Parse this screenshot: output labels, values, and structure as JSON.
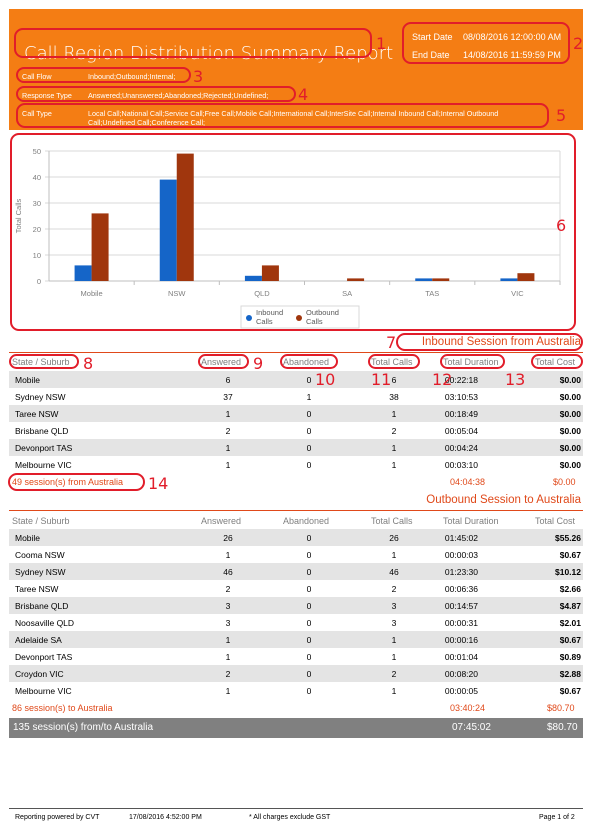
{
  "report": {
    "title": "Call Region Distribution Summary Report",
    "start_label": "Start Date",
    "start_value": "08/08/2016 12:00:00 AM",
    "end_label": "End Date",
    "end_value": "14/08/2016 11:59:59 PM",
    "filters": [
      {
        "label": "Call Flow",
        "value": "Inbound;Outbound;Internal;"
      },
      {
        "label": "Response Type",
        "value": "Answered;Unanswered;Abandoned;Rejected;Undefined;"
      },
      {
        "label": "Call Type",
        "value": "Local Call;National Call;Service Call;Free Call;Mobile Call;International Call;InterSite Call;Internal Inbound Call;Internal Outbound Call;Undefined Call;Conference Call;"
      }
    ],
    "colors": {
      "header": "#f47d14",
      "inbound": "#1565c8",
      "outbound": "#a0360d",
      "annotation": "#e11d2a",
      "section": "#e0491a"
    }
  },
  "annotations": [
    "1",
    "2",
    "3",
    "4",
    "5",
    "6",
    "7",
    "8",
    "9",
    "10",
    "11",
    "12",
    "13",
    "14"
  ],
  "chart_data": {
    "type": "bar",
    "ylabel": "Total Calls",
    "ylim": [
      0,
      50
    ],
    "yticks": [
      "0",
      "10",
      "20",
      "30",
      "40",
      "50"
    ],
    "categories": [
      "Mobile",
      "NSW",
      "QLD",
      "SA",
      "TAS",
      "VIC"
    ],
    "series": [
      {
        "name": "Inbound Calls",
        "values": [
          6,
          39,
          2,
          0,
          1,
          1
        ]
      },
      {
        "name": "Outbound Calls",
        "values": [
          26,
          49,
          6,
          1,
          1,
          3
        ]
      }
    ],
    "legend": [
      "Inbound Calls",
      "Outbound Calls"
    ],
    "legend_placement": "bottom",
    "grid": true
  },
  "columns": [
    "State / Suburb",
    "Answered",
    "Abandoned",
    "Total Calls",
    "Total Duration",
    "Total Cost"
  ],
  "inbound": {
    "title": "Inbound Session from Australia",
    "rows": [
      [
        "Mobile",
        "6",
        "0",
        "6",
        "00:22:18",
        "$0.00"
      ],
      [
        "Sydney NSW",
        "37",
        "1",
        "38",
        "03:10:53",
        "$0.00"
      ],
      [
        "Taree NSW",
        "1",
        "0",
        "1",
        "00:18:49",
        "$0.00"
      ],
      [
        "Brisbane QLD",
        "2",
        "0",
        "2",
        "00:05:04",
        "$0.00"
      ],
      [
        "Devonport TAS",
        "1",
        "0",
        "1",
        "00:04:24",
        "$0.00"
      ],
      [
        "Melbourne VIC",
        "1",
        "0",
        "1",
        "00:03:10",
        "$0.00"
      ]
    ],
    "summary": "49 session(s) from Australia",
    "total_duration": "04:04:38",
    "total_cost": "$0.00"
  },
  "outbound": {
    "title": "Outbound Session to Australia",
    "rows": [
      [
        "Mobile",
        "26",
        "0",
        "26",
        "01:45:02",
        "$55.26"
      ],
      [
        "Cooma NSW",
        "1",
        "0",
        "1",
        "00:00:03",
        "$0.67"
      ],
      [
        "Sydney NSW",
        "46",
        "0",
        "46",
        "01:23:30",
        "$10.12"
      ],
      [
        "Taree NSW",
        "2",
        "0",
        "2",
        "00:06:36",
        "$2.66"
      ],
      [
        "Brisbane QLD",
        "3",
        "0",
        "3",
        "00:14:57",
        "$4.87"
      ],
      [
        "Noosaville QLD",
        "3",
        "0",
        "3",
        "00:00:31",
        "$2.01"
      ],
      [
        "Adelaide SA",
        "1",
        "0",
        "1",
        "00:00:16",
        "$0.67"
      ],
      [
        "Devonport TAS",
        "1",
        "0",
        "1",
        "00:01:04",
        "$0.89"
      ],
      [
        "Croydon VIC",
        "2",
        "0",
        "2",
        "00:08:20",
        "$2.88"
      ],
      [
        "Melbourne VIC",
        "1",
        "0",
        "1",
        "00:00:05",
        "$0.67"
      ]
    ],
    "summary": "86 session(s) to Australia",
    "total_duration": "03:40:24",
    "total_cost": "$80.70"
  },
  "grand_total": {
    "label": "135 session(s) from/to Australia",
    "duration": "07:45:02",
    "cost": "$80.70"
  },
  "footer": {
    "powered": "Reporting powered by CVT",
    "timestamp": "17/08/2016 4:52:00 PM",
    "note": "* All charges exclude GST",
    "page": "Page 1 of 2"
  }
}
